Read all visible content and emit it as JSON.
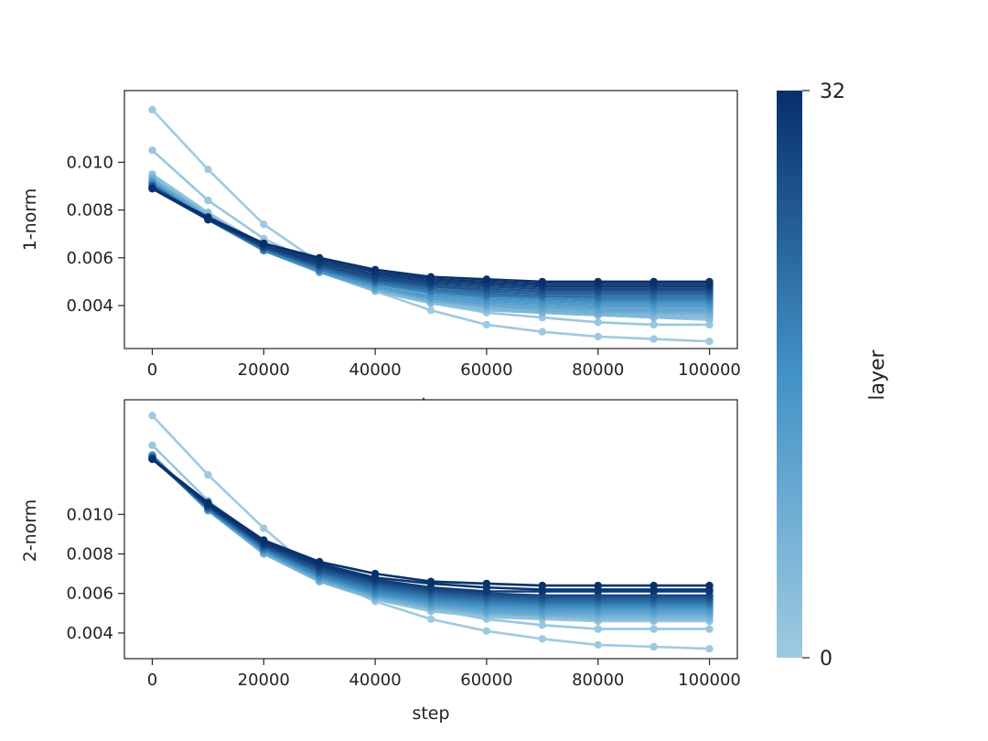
{
  "chart_data": [
    {
      "type": "line",
      "title": "",
      "xlabel": "step",
      "ylabel": "1-norm",
      "xlim": [
        -5000,
        105000
      ],
      "ylim": [
        0.0022,
        0.013
      ],
      "xticks": [
        0,
        20000,
        40000,
        60000,
        80000,
        100000
      ],
      "xtick_labels": [
        "0",
        "20000",
        "40000",
        "60000",
        "80000",
        "100000"
      ],
      "yticks": [
        0.004,
        0.006,
        0.008,
        0.01
      ],
      "ytick_labels": [
        "0.004",
        "0.006",
        "0.008",
        "0.010"
      ],
      "grid": false,
      "x": [
        0,
        10000,
        20000,
        30000,
        40000,
        50000,
        60000,
        70000,
        80000,
        90000,
        100000
      ],
      "series": [
        {
          "layer": 0,
          "values": [
            0.0122,
            0.0097,
            0.0074,
            0.0058,
            0.0046,
            0.0038,
            0.0032,
            0.0029,
            0.0027,
            0.0026,
            0.0025
          ]
        },
        {
          "layer": 1,
          "values": [
            0.0105,
            0.0084,
            0.0068,
            0.0057,
            0.0048,
            0.0041,
            0.0037,
            0.0035,
            0.0033,
            0.0032,
            0.0032
          ]
        },
        {
          "layer": 2,
          "values": [
            0.0095,
            0.0079,
            0.0065,
            0.0054,
            0.0046,
            0.0041,
            0.0038,
            0.0037,
            0.0036,
            0.0035,
            0.0034
          ]
        },
        {
          "layer": 4,
          "values": [
            0.0094,
            0.0078,
            0.0064,
            0.0054,
            0.0046,
            0.0041,
            0.0038,
            0.0037,
            0.0036,
            0.0035,
            0.0035
          ]
        },
        {
          "layer": 6,
          "values": [
            0.0093,
            0.0078,
            0.0064,
            0.0054,
            0.0047,
            0.0042,
            0.0039,
            0.0037,
            0.0036,
            0.0036,
            0.0036
          ]
        },
        {
          "layer": 8,
          "values": [
            0.0093,
            0.0077,
            0.0064,
            0.0054,
            0.0047,
            0.0042,
            0.004,
            0.0038,
            0.0037,
            0.0037,
            0.0037
          ]
        },
        {
          "layer": 10,
          "values": [
            0.0092,
            0.0077,
            0.0063,
            0.0054,
            0.0047,
            0.0043,
            0.004,
            0.0039,
            0.0038,
            0.0038,
            0.0038
          ]
        },
        {
          "layer": 12,
          "values": [
            0.0092,
            0.0077,
            0.0063,
            0.0054,
            0.0048,
            0.0043,
            0.0041,
            0.004,
            0.0039,
            0.0039,
            0.0039
          ]
        },
        {
          "layer": 14,
          "values": [
            0.0091,
            0.0076,
            0.0063,
            0.0054,
            0.0048,
            0.0044,
            0.0042,
            0.0041,
            0.004,
            0.004,
            0.004
          ]
        },
        {
          "layer": 16,
          "values": [
            0.0091,
            0.0076,
            0.0063,
            0.0055,
            0.0049,
            0.0045,
            0.0043,
            0.0042,
            0.0041,
            0.0041,
            0.0041
          ]
        },
        {
          "layer": 18,
          "values": [
            0.0091,
            0.0076,
            0.0063,
            0.0055,
            0.0049,
            0.0046,
            0.0044,
            0.0043,
            0.0042,
            0.0042,
            0.0042
          ]
        },
        {
          "layer": 20,
          "values": [
            0.009,
            0.0076,
            0.0064,
            0.0055,
            0.005,
            0.0046,
            0.0044,
            0.0044,
            0.0043,
            0.0043,
            0.0043
          ]
        },
        {
          "layer": 22,
          "values": [
            0.009,
            0.0076,
            0.0064,
            0.0056,
            0.005,
            0.0047,
            0.0045,
            0.0044,
            0.0044,
            0.0044,
            0.0044
          ]
        },
        {
          "layer": 24,
          "values": [
            0.009,
            0.0076,
            0.0064,
            0.0056,
            0.0051,
            0.0048,
            0.0046,
            0.0045,
            0.0045,
            0.0045,
            0.0045
          ]
        },
        {
          "layer": 26,
          "values": [
            0.009,
            0.0076,
            0.0064,
            0.0057,
            0.0051,
            0.0048,
            0.0047,
            0.0046,
            0.0046,
            0.0046,
            0.0046
          ]
        },
        {
          "layer": 28,
          "values": [
            0.0089,
            0.0076,
            0.0065,
            0.0057,
            0.0052,
            0.0049,
            0.0048,
            0.0047,
            0.0047,
            0.0047,
            0.0047
          ]
        },
        {
          "layer": 30,
          "values": [
            0.0089,
            0.0076,
            0.0065,
            0.0058,
            0.0053,
            0.005,
            0.0049,
            0.0048,
            0.0048,
            0.0048,
            0.0048
          ]
        },
        {
          "layer": 31,
          "values": [
            0.0089,
            0.0076,
            0.0066,
            0.0059,
            0.0054,
            0.0051,
            0.005,
            0.0049,
            0.0049,
            0.0049,
            0.0049
          ]
        },
        {
          "layer": 32,
          "values": [
            0.0089,
            0.0077,
            0.0066,
            0.006,
            0.0055,
            0.0052,
            0.0051,
            0.005,
            0.005,
            0.005,
            0.005
          ]
        }
      ]
    },
    {
      "type": "line",
      "title": "",
      "xlabel": "step",
      "ylabel": "2-norm",
      "xlim": [
        -5000,
        105000
      ],
      "ylim": [
        0.0027,
        0.0158
      ],
      "xticks": [
        0,
        20000,
        40000,
        60000,
        80000,
        100000
      ],
      "xtick_labels": [
        "0",
        "20000",
        "40000",
        "60000",
        "80000",
        "100000"
      ],
      "yticks": [
        0.004,
        0.006,
        0.008,
        0.01
      ],
      "ytick_labels": [
        "0.004",
        "0.006",
        "0.008",
        "0.010"
      ],
      "grid": false,
      "x": [
        0,
        10000,
        20000,
        30000,
        40000,
        50000,
        60000,
        70000,
        80000,
        90000,
        100000
      ],
      "series": [
        {
          "layer": 0,
          "values": [
            0.015,
            0.012,
            0.0093,
            0.0069,
            0.0056,
            0.0047,
            0.0041,
            0.0037,
            0.0034,
            0.0033,
            0.0032
          ]
        },
        {
          "layer": 1,
          "values": [
            0.0135,
            0.0107,
            0.0086,
            0.0071,
            0.006,
            0.0052,
            0.0047,
            0.0044,
            0.0042,
            0.0042,
            0.0042
          ]
        },
        {
          "layer": 2,
          "values": [
            0.013,
            0.0103,
            0.0081,
            0.0066,
            0.0057,
            0.0051,
            0.0048,
            0.0047,
            0.0046,
            0.0046,
            0.0046
          ]
        },
        {
          "layer": 4,
          "values": [
            0.013,
            0.0102,
            0.008,
            0.0066,
            0.0057,
            0.0052,
            0.0049,
            0.0048,
            0.0047,
            0.0047,
            0.0047
          ]
        },
        {
          "layer": 6,
          "values": [
            0.013,
            0.0102,
            0.008,
            0.0066,
            0.0058,
            0.0053,
            0.005,
            0.0049,
            0.0048,
            0.0048,
            0.0048
          ]
        },
        {
          "layer": 8,
          "values": [
            0.013,
            0.0102,
            0.0081,
            0.0067,
            0.0058,
            0.0053,
            0.005,
            0.0049,
            0.0049,
            0.0049,
            0.0049
          ]
        },
        {
          "layer": 10,
          "values": [
            0.013,
            0.0102,
            0.0081,
            0.0067,
            0.0059,
            0.0054,
            0.0051,
            0.005,
            0.005,
            0.005,
            0.005
          ]
        },
        {
          "layer": 12,
          "values": [
            0.013,
            0.0102,
            0.0081,
            0.0068,
            0.0059,
            0.0055,
            0.0052,
            0.0051,
            0.0051,
            0.0051,
            0.0051
          ]
        },
        {
          "layer": 14,
          "values": [
            0.0129,
            0.0102,
            0.0082,
            0.0068,
            0.006,
            0.0055,
            0.0053,
            0.0052,
            0.0052,
            0.0052,
            0.0052
          ]
        },
        {
          "layer": 16,
          "values": [
            0.0129,
            0.0103,
            0.0082,
            0.0069,
            0.006,
            0.0056,
            0.0054,
            0.0053,
            0.0053,
            0.0053,
            0.0053
          ]
        },
        {
          "layer": 18,
          "values": [
            0.0129,
            0.0103,
            0.0082,
            0.0069,
            0.0061,
            0.0057,
            0.0055,
            0.0054,
            0.0054,
            0.0054,
            0.0054
          ]
        },
        {
          "layer": 20,
          "values": [
            0.0129,
            0.0103,
            0.0083,
            0.007,
            0.0062,
            0.0058,
            0.0056,
            0.0055,
            0.0055,
            0.0055,
            0.0055
          ]
        },
        {
          "layer": 22,
          "values": [
            0.0129,
            0.0103,
            0.0083,
            0.0071,
            0.0063,
            0.0059,
            0.0057,
            0.0056,
            0.0056,
            0.0056,
            0.0056
          ]
        },
        {
          "layer": 24,
          "values": [
            0.0129,
            0.0104,
            0.0084,
            0.0071,
            0.0064,
            0.006,
            0.0058,
            0.0057,
            0.0057,
            0.0057,
            0.0057
          ]
        },
        {
          "layer": 26,
          "values": [
            0.0128,
            0.0104,
            0.0084,
            0.0072,
            0.0065,
            0.0061,
            0.0059,
            0.0058,
            0.0058,
            0.0058,
            0.0058
          ]
        },
        {
          "layer": 28,
          "values": [
            0.0128,
            0.0104,
            0.0085,
            0.0073,
            0.0066,
            0.0062,
            0.006,
            0.0059,
            0.0059,
            0.0059,
            0.0059
          ]
        },
        {
          "layer": 30,
          "values": [
            0.0128,
            0.0105,
            0.0085,
            0.0074,
            0.0067,
            0.0063,
            0.0061,
            0.0061,
            0.0061,
            0.0061,
            0.0061
          ]
        },
        {
          "layer": 31,
          "values": [
            0.0128,
            0.0105,
            0.0086,
            0.0075,
            0.0068,
            0.0065,
            0.0063,
            0.0062,
            0.0062,
            0.0062,
            0.0062
          ]
        },
        {
          "layer": 32,
          "values": [
            0.0128,
            0.0106,
            0.0087,
            0.0076,
            0.007,
            0.0066,
            0.0065,
            0.0064,
            0.0064,
            0.0064,
            0.0064
          ]
        }
      ]
    }
  ],
  "colorbar": {
    "label": "layer",
    "min": 0,
    "max": 32,
    "min_label": "0",
    "max_label": "32",
    "color_low": "#9ecae1",
    "color_high": "#08306b"
  }
}
